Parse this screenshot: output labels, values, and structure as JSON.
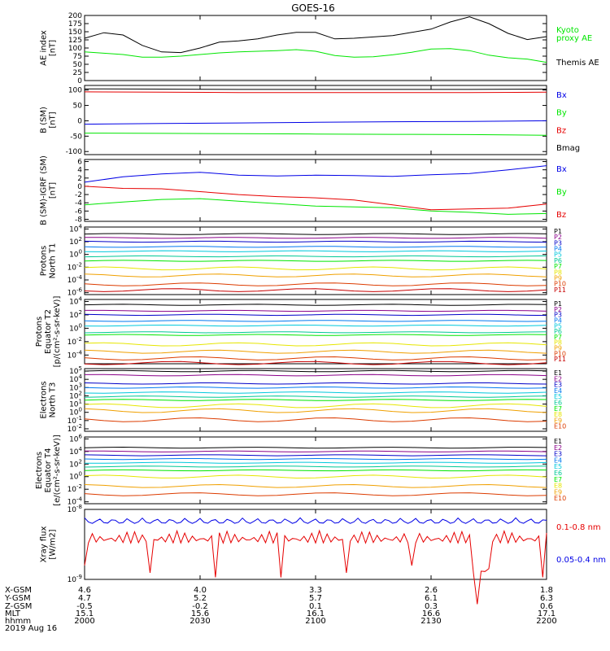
{
  "title": "GOES-16",
  "date": "2019 Aug 16",
  "colors": {
    "black": "#000000",
    "red": "#e60000",
    "green": "#00e600",
    "blue": "#0000e6",
    "P": [
      "#000000",
      "#8a0089",
      "#0000c8",
      "#0078f0",
      "#00c8dc",
      "#00c896",
      "#00e600",
      "#e6e600",
      "#f0a000",
      "#dc3c00",
      "#c80000"
    ],
    "E": [
      "#000000",
      "#8a0089",
      "#0000c8",
      "#0078f0",
      "#00c8dc",
      "#00c896",
      "#00e600",
      "#e6e600",
      "#f0a000",
      "#dc3c00",
      "#c80000"
    ]
  },
  "x_ticks": [
    {
      "x": 2000,
      "xgsm": "4.6",
      "ygsm": "4.7",
      "zgsm": "-0.5",
      "mlt": "15.1",
      "hhmm": "2000"
    },
    {
      "x": 2030,
      "xgsm": "4.0",
      "ygsm": "5.2",
      "zgsm": "-0.2",
      "mlt": "15.6",
      "hhmm": "2030"
    },
    {
      "x": 2100,
      "xgsm": "3.3",
      "ygsm": "5.7",
      "zgsm": "0.1",
      "mlt": "16.1",
      "hhmm": "2100"
    },
    {
      "x": 2130,
      "xgsm": "2.6",
      "ygsm": "6.1",
      "zgsm": "0.3",
      "mlt": "16.6",
      "hhmm": "2130"
    },
    {
      "x": 2200,
      "xgsm": "1.8",
      "ygsm": "6.3",
      "zgsm": "0.6",
      "mlt": "17.1",
      "hhmm": "2200"
    }
  ],
  "row_labels": [
    "X-GSM",
    "Y-GSM",
    "Z-GSM",
    "MLT",
    "hhmm"
  ],
  "chart_data": [
    {
      "type": "line",
      "id": "ae",
      "ylabel": [
        "AE index",
        "[nT]"
      ],
      "ylim": [
        0,
        200
      ],
      "yticks": [
        "0",
        "25",
        "50",
        "75",
        "100",
        "125",
        "150",
        "175",
        "200"
      ],
      "series": [
        {
          "name": "Themis AE",
          "color": "#000000",
          "x": [
            0,
            5,
            10,
            15,
            20,
            25,
            30,
            35,
            40,
            45,
            50,
            55,
            60,
            65,
            70,
            75,
            80,
            85,
            90,
            95,
            100,
            105,
            110,
            115,
            120
          ],
          "y": [
            130,
            147,
            140,
            108,
            88,
            86,
            100,
            118,
            122,
            128,
            140,
            148,
            148,
            128,
            130,
            134,
            138,
            148,
            158,
            180,
            196,
            175,
            145,
            126,
            135
          ]
        },
        {
          "name": "Kyoto proxy AE",
          "color": "#00e600",
          "x": [
            0,
            5,
            10,
            15,
            20,
            25,
            30,
            35,
            40,
            45,
            50,
            55,
            60,
            65,
            70,
            75,
            80,
            85,
            90,
            95,
            100,
            105,
            110,
            115,
            120
          ],
          "y": [
            88,
            84,
            80,
            72,
            72,
            75,
            80,
            85,
            88,
            90,
            92,
            95,
            90,
            77,
            72,
            73,
            79,
            87,
            97,
            98,
            92,
            78,
            70,
            66,
            56
          ]
        }
      ]
    },
    {
      "type": "line",
      "id": "bsm",
      "ylabel": [
        "B (SM)",
        "[nT]"
      ],
      "ylim": [
        -110,
        115
      ],
      "yticks": [
        "-100",
        "-50",
        "0",
        "50",
        "100"
      ],
      "series": [
        {
          "name": "Bx",
          "color": "#0000e6",
          "x": [
            0,
            20,
            40,
            60,
            80,
            100,
            120
          ],
          "y": [
            -11,
            -9,
            -7,
            -5,
            -3,
            -2,
            0
          ]
        },
        {
          "name": "By",
          "color": "#00e600",
          "x": [
            0,
            20,
            40,
            60,
            80,
            100,
            120
          ],
          "y": [
            -40,
            -41,
            -42,
            -43,
            -44,
            -45,
            -47
          ]
        },
        {
          "name": "Bz",
          "color": "#e60000",
          "x": [
            0,
            20,
            40,
            60,
            80,
            100,
            120
          ],
          "y": [
            94,
            93,
            92,
            92,
            92,
            92,
            93
          ]
        },
        {
          "name": "Bmag",
          "color": "#000000",
          "x": [
            0,
            20,
            40,
            60,
            80,
            100,
            120
          ],
          "y": [
            104,
            103,
            102,
            102,
            102,
            102,
            103
          ]
        }
      ]
    },
    {
      "type": "line",
      "id": "bigrf",
      "ylabel": [
        "B (SM)-IGRF (SM)",
        "[nT]"
      ],
      "ylim": [
        -8.5,
        6.5
      ],
      "yticks": [
        "-8",
        "-6",
        "-4",
        "-2",
        "0",
        "2",
        "4",
        "6"
      ],
      "series": [
        {
          "name": "Bx",
          "color": "#0000e6",
          "x": [
            0,
            10,
            20,
            30,
            40,
            50,
            60,
            70,
            80,
            90,
            100,
            110,
            120
          ],
          "y": [
            1,
            2.3,
            3,
            3.4,
            2.7,
            2.5,
            2.7,
            2.6,
            2.4,
            2.8,
            3.1,
            4,
            5
          ]
        },
        {
          "name": "By",
          "color": "#00e600",
          "x": [
            0,
            10,
            20,
            30,
            40,
            50,
            60,
            70,
            80,
            90,
            100,
            110,
            120
          ],
          "y": [
            -4.5,
            -3.8,
            -3.2,
            -3,
            -3.6,
            -4.2,
            -4.8,
            -5,
            -5.2,
            -6,
            -6.3,
            -6.8,
            -6.6
          ]
        },
        {
          "name": "Bz",
          "color": "#e60000",
          "x": [
            0,
            10,
            20,
            30,
            40,
            50,
            60,
            70,
            80,
            90,
            100,
            110,
            120
          ],
          "y": [
            0,
            -0.5,
            -0.6,
            -1.3,
            -2,
            -2.5,
            -2.8,
            -3.3,
            -4.5,
            -5.7,
            -5.5,
            -5.3,
            -4.3
          ]
        }
      ]
    },
    {
      "type": "line",
      "id": "pn1",
      "ylabel": [
        "Protons",
        "North T1"
      ],
      "ylim": [
        -6.3,
        4.3
      ],
      "log": true,
      "yticks": [
        "10^-6",
        "10^-4",
        "10^-2",
        "10^0",
        "10^2",
        "10^4"
      ],
      "names": [
        "P1",
        "P2",
        "P3",
        "P4",
        "P5",
        "P6",
        "P7",
        "P8",
        "P9",
        "P10",
        "P11"
      ],
      "levels": [
        3.2,
        2.6,
        2.0,
        1.2,
        0.5,
        -0.3,
        -1.0,
        -2.2,
        -3.3,
        -4.7,
        -5.6
      ]
    },
    {
      "type": "line",
      "id": "pe2",
      "ylabel": [
        "Protons",
        "Equator T2",
        "[p/(cm²-s-sr-keV)]"
      ],
      "ylim": [
        -5.3,
        4.3
      ],
      "log": true,
      "yticks": [
        "10^-4",
        "10^-2",
        "10^0",
        "10^2",
        "10^4"
      ],
      "names": [
        "P1",
        "P2",
        "P3",
        "P4",
        "P5",
        "P6",
        "P7",
        "P8",
        "P9",
        "P10",
        "P11"
      ],
      "levels": [
        3.5,
        2.6,
        2.0,
        1.1,
        0.4,
        -0.6,
        -1.0,
        -2.4,
        -3.5,
        -4.5,
        -5.2
      ]
    },
    {
      "type": "line",
      "id": "en3",
      "ylabel": [
        "Electrons",
        "North T3"
      ],
      "ylim": [
        -2.3,
        5.3
      ],
      "log": true,
      "yticks": [
        "10^-2",
        "10^-1",
        "10^0",
        "10^1",
        "10^2",
        "10^3",
        "10^4",
        "10^5"
      ],
      "names": [
        "E1",
        "E2",
        "E3",
        "E4",
        "E5",
        "E6",
        "E7",
        "E8",
        "E9",
        "E10"
      ],
      "levels": [
        5.0,
        4.5,
        3.5,
        3.0,
        2.4,
        1.9,
        1.5,
        0.8,
        0.2,
        -0.9
      ]
    },
    {
      "type": "line",
      "id": "ee4",
      "ylabel": [
        "Electrons",
        "Equator T4",
        "[e/(cm²-s-sr-keV)]"
      ],
      "ylim": [
        -4.3,
        6.3
      ],
      "log": true,
      "yticks": [
        "10^-4",
        "10^-2",
        "10^0",
        "10^2",
        "10^4",
        "10^6"
      ],
      "names": [
        "E1",
        "E2",
        "E3",
        "E4",
        "E5",
        "E6",
        "E7",
        "E8",
        "E9",
        "E10"
      ],
      "levels": [
        4.6,
        4.0,
        3.4,
        2.8,
        2.2,
        1.6,
        1.0,
        0.0,
        -1.5,
        -2.8
      ]
    },
    {
      "type": "line",
      "id": "xray",
      "ylabel": [
        "Xray flux",
        "[W/m2]"
      ],
      "ylim": [
        -9,
        -8
      ],
      "log": true,
      "yticks": [
        "10^-9",
        "10^-8"
      ],
      "series": [
        {
          "name": "0.1-0.8 nm",
          "color": "#e60000"
        },
        {
          "name": "0.05-0.4 nm",
          "color": "#0000e6"
        }
      ]
    }
  ],
  "legends": {
    "ae": [
      {
        "text": "Kyoto",
        "color": "#00e600"
      },
      {
        "text": "proxy AE",
        "color": "#00e600"
      },
      {
        "text": "Themis AE",
        "color": "#000000"
      }
    ],
    "bsm": [
      {
        "text": "Bx",
        "color": "#0000e6"
      },
      {
        "text": "By",
        "color": "#00e600"
      },
      {
        "text": "Bz",
        "color": "#e60000"
      },
      {
        "text": "Bmag",
        "color": "#000000"
      }
    ],
    "bigrf": [
      {
        "text": "Bx",
        "color": "#0000e6"
      },
      {
        "text": "By",
        "color": "#00e600"
      },
      {
        "text": "Bz",
        "color": "#e60000"
      }
    ],
    "xray": [
      {
        "text": "0.1-0.8 nm",
        "color": "#e60000"
      },
      {
        "text": "0.05-0.4 nm",
        "color": "#0000e6"
      }
    ]
  }
}
